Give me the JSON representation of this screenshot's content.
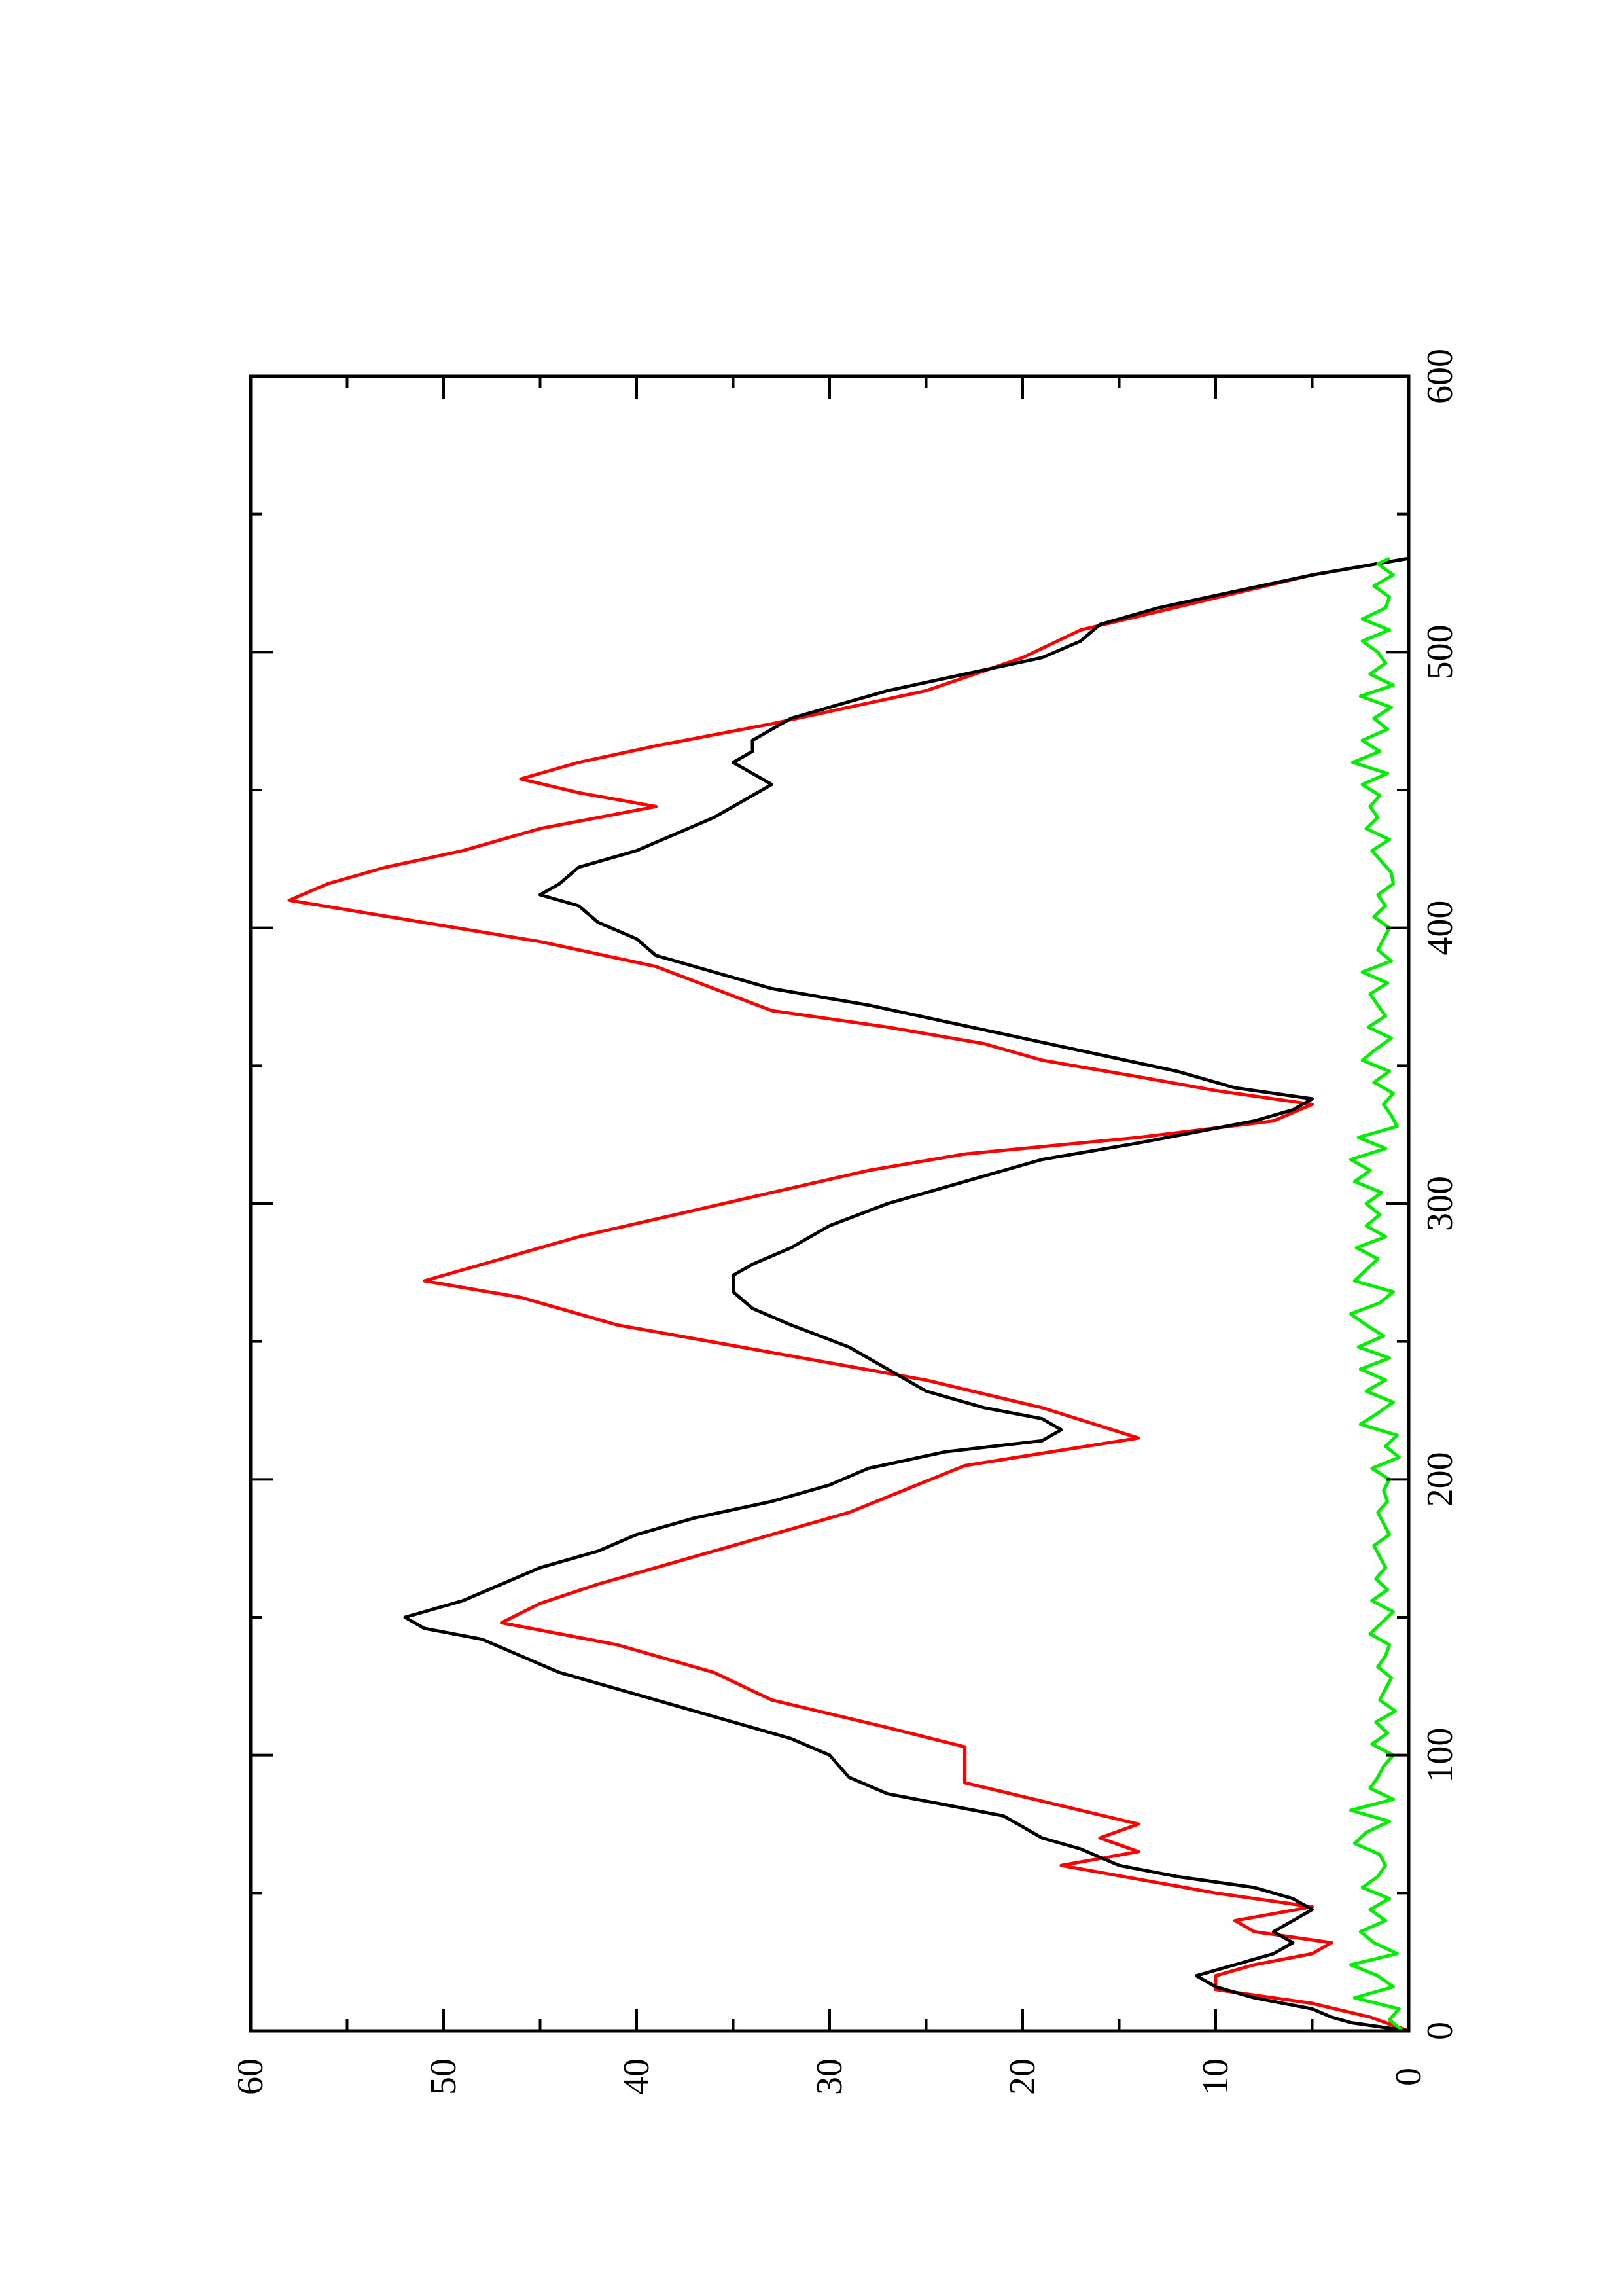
{
  "chart_data": {
    "type": "line",
    "orientation": "rotated-90-ccw",
    "title": "",
    "xlabel": "",
    "ylabel": "",
    "xlim": [
      0,
      600
    ],
    "ylim": [
      0,
      60
    ],
    "x_ticks": [
      0,
      100,
      200,
      300,
      400,
      500,
      600
    ],
    "x_minor_ticks": [
      50,
      150,
      250,
      350,
      450,
      550
    ],
    "y_ticks": [
      0,
      10,
      20,
      30,
      40,
      50,
      60
    ],
    "y_minor_ticks": [
      5,
      15,
      25,
      35,
      45,
      55
    ],
    "grid": false,
    "legend": "none",
    "series": [
      {
        "color": "#ff0000",
        "style": "step",
        "x": [
          0,
          5,
          10,
          15,
          20,
          24,
          28,
          32,
          36,
          40,
          45,
          50,
          55,
          60,
          65,
          70,
          75,
          80,
          90,
          103,
          110,
          120,
          130,
          140,
          148,
          155,
          162,
          170,
          178,
          188,
          205,
          215,
          226,
          236,
          246,
          256,
          266,
          272,
          280,
          288,
          296,
          304,
          312,
          318,
          324,
          330,
          336,
          341,
          346,
          352,
          358,
          364,
          370,
          378,
          386,
          395,
          410,
          416,
          422,
          428,
          436,
          444,
          449,
          454,
          460,
          466,
          474,
          486,
          498,
          508,
          518,
          528,
          534
        ],
        "y": [
          0,
          2,
          5,
          10,
          10,
          8,
          5,
          4,
          8,
          9,
          5,
          10,
          14,
          18,
          14,
          16,
          14,
          17,
          23,
          23,
          27,
          33,
          36,
          41,
          47,
          45,
          42,
          38,
          34,
          29,
          23,
          14,
          19,
          25,
          33,
          41,
          46,
          51,
          47,
          43,
          38,
          33,
          28,
          23,
          14,
          7,
          5,
          10,
          14,
          19,
          22,
          27,
          33,
          36,
          39,
          45,
          58,
          56,
          53,
          49,
          45,
          39,
          43,
          46,
          43,
          39,
          33,
          25,
          20,
          17,
          11,
          5,
          0
        ]
      },
      {
        "color": "#000000",
        "style": "line",
        "x": [
          0,
          3,
          5,
          8,
          12,
          16,
          20,
          24,
          28,
          32,
          36,
          40,
          44,
          48,
          52,
          56,
          60,
          63,
          66,
          70,
          74,
          78,
          82,
          86,
          92,
          100,
          106,
          112,
          118,
          124,
          130,
          136,
          142,
          146,
          150,
          156,
          162,
          168,
          174,
          180,
          186,
          192,
          198,
          204,
          210,
          214,
          218,
          222,
          226,
          232,
          240,
          248,
          256,
          262,
          268,
          274,
          278,
          284,
          292,
          300,
          308,
          316,
          322,
          326,
          330,
          334,
          338,
          342,
          348,
          354,
          360,
          366,
          372,
          378,
          384,
          390,
          396,
          402,
          408,
          412,
          416,
          422,
          428,
          434,
          440,
          444,
          448,
          452,
          456,
          460,
          464,
          468,
          472,
          476,
          480,
          486,
          492,
          498,
          504,
          510,
          516,
          522,
          528,
          534
        ],
        "y": [
          0,
          3,
          4,
          5,
          8,
          10,
          11,
          9,
          7,
          6,
          7,
          6,
          5,
          6,
          8,
          12,
          15,
          16,
          17,
          19,
          20,
          21,
          24,
          27,
          29,
          30,
          32,
          35,
          38,
          41,
          44,
          46,
          48,
          51,
          52,
          49,
          47,
          45,
          42,
          40,
          37,
          33,
          30,
          28,
          24,
          19,
          18,
          19,
          22,
          25,
          27,
          29,
          32,
          34,
          35,
          35,
          34,
          32,
          30,
          27,
          23,
          19,
          14,
          11,
          8,
          6,
          5,
          9,
          12,
          16,
          20,
          24,
          28,
          33,
          36,
          39,
          40,
          42,
          43,
          45,
          44,
          43,
          40,
          38,
          36,
          35,
          34,
          33,
          34,
          35,
          34,
          34,
          33,
          32,
          30,
          27,
          23,
          19,
          17,
          16,
          13,
          9,
          5,
          0
        ]
      },
      {
        "color": "#00ee00",
        "style": "line",
        "x": [
          0,
          4,
          8,
          12,
          16,
          20,
          24,
          28,
          32,
          36,
          40,
          44,
          48,
          52,
          56,
          60,
          64,
          68,
          72,
          76,
          80,
          84,
          88,
          92,
          96,
          100,
          104,
          108,
          112,
          116,
          120,
          124,
          128,
          132,
          136,
          140,
          144,
          148,
          152,
          156,
          160,
          164,
          168,
          172,
          176,
          180,
          184,
          188,
          192,
          196,
          200,
          204,
          208,
          212,
          216,
          220,
          224,
          228,
          232,
          236,
          240,
          244,
          248,
          252,
          256,
          260,
          264,
          268,
          272,
          276,
          280,
          284,
          288,
          292,
          296,
          300,
          304,
          308,
          312,
          316,
          320,
          324,
          328,
          332,
          336,
          340,
          344,
          348,
          352,
          356,
          360,
          364,
          368,
          372,
          376,
          380,
          384,
          388,
          392,
          396,
          400,
          404,
          408,
          412,
          416,
          420,
          424,
          428,
          432,
          436,
          440,
          444,
          448,
          452,
          456,
          460,
          464,
          468,
          472,
          476,
          480,
          484,
          488,
          492,
          496,
          500,
          504,
          508,
          512,
          516,
          520,
          524,
          528,
          532,
          534
        ],
        "y": [
          0.3,
          1.0,
          0.5,
          2.8,
          0.8,
          1.6,
          3.0,
          0.6,
          1.8,
          2.5,
          1.2,
          2.0,
          1.0,
          2.4,
          1.6,
          1.2,
          1.5,
          2.8,
          2.2,
          1.0,
          3.0,
          0.8,
          2.0,
          1.6,
          1.3,
          0.8,
          1.9,
          1.1,
          1.7,
          0.7,
          1.5,
          1.2,
          0.9,
          1.6,
          1.2,
          1.0,
          2.0,
          1.4,
          0.8,
          1.9,
          1.1,
          1.7,
          1.2,
          1.5,
          1.8,
          1.0,
          1.3,
          1.6,
          1.1,
          1.3,
          1.0,
          1.9,
          0.5,
          1.2,
          0.6,
          2.5,
          1.6,
          0.8,
          2.2,
          1.2,
          2.5,
          1.0,
          2.6,
          1.3,
          2.2,
          3.0,
          1.5,
          0.8,
          2.8,
          2.2,
          1.6,
          2.7,
          1.2,
          2.2,
          1.5,
          2.2,
          1.4,
          2.8,
          2.0,
          3.0,
          1.2,
          2.6,
          0.6,
          0.9,
          1.3,
          0.8,
          1.8,
          1.0,
          2.4,
          1.7,
          0.9,
          2.1,
          1.2,
          1.6,
          2.0,
          1.1,
          2.4,
          0.9,
          1.6,
          1.3,
          1.0,
          1.8,
          1.2,
          1.6,
          0.8,
          0.9,
          1.4,
          1.9,
          1.0,
          2.2,
          1.6,
          2.0,
          1.5,
          2.4,
          1.1,
          2.9,
          1.5,
          2.4,
          1.1,
          1.8,
          0.9,
          2.5,
          0.8,
          2.0,
          1.2,
          1.6,
          2.4,
          1.0,
          2.4,
          1.2,
          1.0,
          1.8,
          0.8,
          1.6,
          1.0
        ]
      }
    ]
  }
}
